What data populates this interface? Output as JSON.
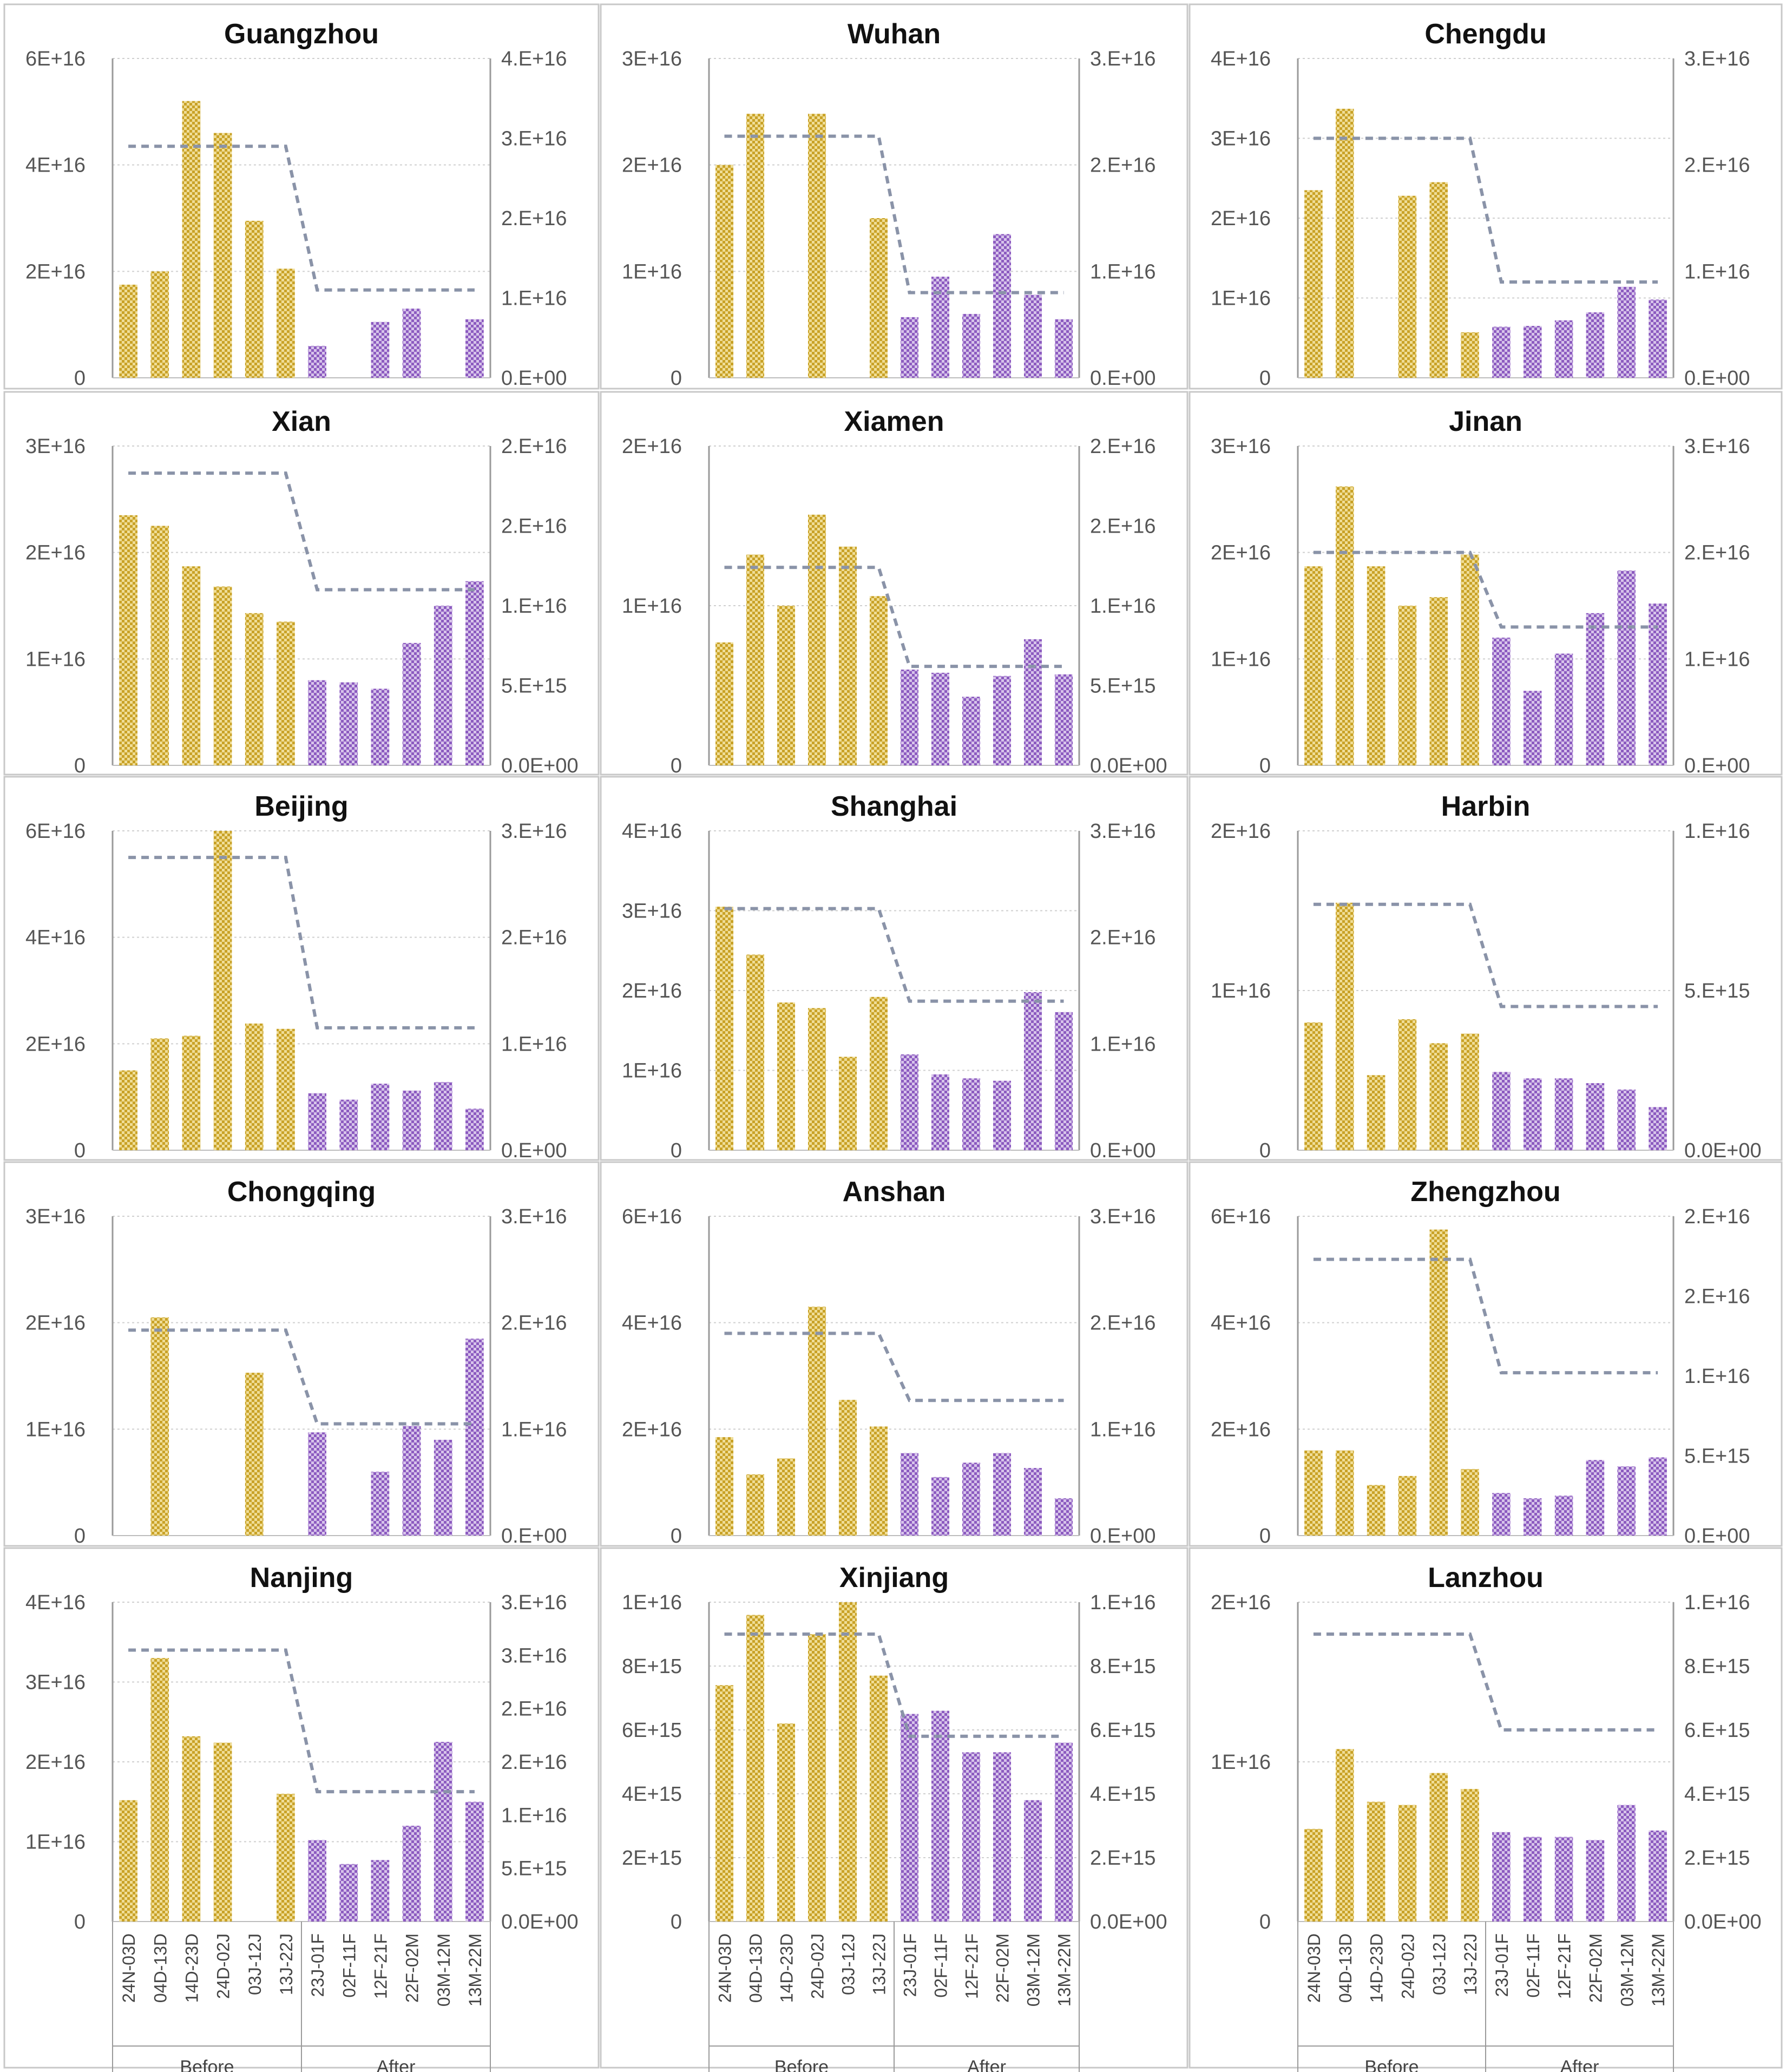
{
  "palette": {
    "before": "#c9a227",
    "before_light": "#efdd97",
    "after": "#8c5bc0",
    "after_light": "#d7c4ea",
    "avg_line": "#8a93a8",
    "axis": "#9a9a9a",
    "grid": "#cfcfcf"
  },
  "x_categories": [
    "24N-03D",
    "04D-13D",
    "14D-23D",
    "24D-02J",
    "03J-12J",
    "13J-22J",
    "23J-01F",
    "02F-11F",
    "12F-21F",
    "22F-02M",
    "03M-12M",
    "13M-22M"
  ],
  "groups": [
    {
      "label": "Before",
      "count": 6
    },
    {
      "label": "After",
      "count": 6
    }
  ],
  "chart_data": [
    {
      "type": "bar",
      "title": "Guangzhou",
      "ylim": [
        0,
        6e+16
      ],
      "yticks": [
        "0",
        "2E+16",
        "4E+16",
        "6E+16"
      ],
      "y2lim": [
        0,
        4e+16
      ],
      "y2ticks": [
        "0.E+00",
        "1.E+16",
        "2.E+16",
        "3.E+16",
        "4.E+16"
      ],
      "values": [
        1.75e+16,
        2e+16,
        5.2e+16,
        4.6e+16,
        2.95e+16,
        2.05e+16,
        6000000000000000.0,
        null,
        1.05e+16,
        1.3e+16,
        null,
        1.1e+16
      ],
      "avg_before": 2.9e+16,
      "avg_after": 1.1e+16
    },
    {
      "type": "bar",
      "title": "Wuhan",
      "ylim": [
        0,
        3e+16
      ],
      "yticks": [
        "0",
        "1E+16",
        "2E+16",
        "3E+16"
      ],
      "y2lim": [
        0,
        3e+16
      ],
      "y2ticks": [
        "0.E+00",
        "1.E+16",
        "2.E+16",
        "3.E+16"
      ],
      "values": [
        2e+16,
        2.48e+16,
        null,
        2.48e+16,
        null,
        1.5e+16,
        5700000000000000.0,
        9500000000000000.0,
        6000000000000000.0,
        1.35e+16,
        7800000000000000.0,
        5500000000000000.0
      ],
      "avg_before": 2.27e+16,
      "avg_after": 8000000000000000.0
    },
    {
      "type": "bar",
      "title": "Chengdu",
      "ylim": [
        0,
        4e+16
      ],
      "yticks": [
        "0",
        "1E+16",
        "2E+16",
        "3E+16",
        "4E+16"
      ],
      "y2lim": [
        0,
        3e+16
      ],
      "y2ticks": [
        "0.E+00",
        "1.E+16",
        "2.E+16",
        "3.E+16"
      ],
      "values": [
        2.35e+16,
        3.37e+16,
        null,
        2.28e+16,
        2.45e+16,
        5700000000000000.0,
        6400000000000000.0,
        6500000000000000.0,
        7200000000000000.0,
        8200000000000000.0,
        1.14e+16,
        9800000000000000.0
      ],
      "avg_before": 2.25e+16,
      "avg_after": 9000000000000000.0
    },
    {
      "type": "bar",
      "title": "Xian",
      "ylim": [
        0,
        3e+16
      ],
      "yticks": [
        "0",
        "1E+16",
        "2E+16",
        "3E+16"
      ],
      "y2lim": [
        0,
        2e+16
      ],
      "y2ticks": [
        "0.0E+00",
        "5.E+15",
        "1.E+16",
        "2.E+16",
        "2.E+16"
      ],
      "values": [
        2.35e+16,
        2.25e+16,
        1.87e+16,
        1.68e+16,
        1.43e+16,
        1.35e+16,
        8000000000000000.0,
        7800000000000000.0,
        7200000000000000.0,
        1.15e+16,
        1.5e+16,
        1.73e+16
      ],
      "avg_before": 1.83e+16,
      "avg_after": 1.1e+16
    },
    {
      "type": "bar",
      "title": "Xiamen",
      "ylim": [
        0,
        2e+16
      ],
      "yticks": [
        "0",
        "1E+16",
        "2E+16"
      ],
      "y2lim": [
        0,
        2e+16
      ],
      "y2ticks": [
        "0.0E+00",
        "5.E+15",
        "1.E+16",
        "2.E+16",
        "2.E+16"
      ],
      "values": [
        7700000000000000.0,
        1.32e+16,
        1e+16,
        1.57e+16,
        1.37e+16,
        1.06e+16,
        6000000000000000.0,
        5800000000000000.0,
        4300000000000000.0,
        5600000000000000.0,
        7900000000000000.0,
        5700000000000000.0
      ],
      "avg_before": 1.24e+16,
      "avg_after": 6200000000000000.0
    },
    {
      "type": "bar",
      "title": "Jinan",
      "ylim": [
        0,
        3e+16
      ],
      "yticks": [
        "0",
        "1E+16",
        "2E+16",
        "3E+16"
      ],
      "y2lim": [
        0,
        3e+16
      ],
      "y2ticks": [
        "0.E+00",
        "1.E+16",
        "2.E+16",
        "3.E+16"
      ],
      "values": [
        1.87e+16,
        2.62e+16,
        1.87e+16,
        1.5e+16,
        1.58e+16,
        1.98e+16,
        1.2e+16,
        7000000000000000.0,
        1.05e+16,
        1.43e+16,
        1.83e+16,
        1.52e+16
      ],
      "avg_before": 2e+16,
      "avg_after": 1.3e+16
    },
    {
      "type": "bar",
      "title": "Beijing",
      "ylim": [
        0,
        6e+16
      ],
      "yticks": [
        "0",
        "2E+16",
        "4E+16",
        "6E+16"
      ],
      "y2lim": [
        0,
        3e+16
      ],
      "y2ticks": [
        "0.E+00",
        "1.E+16",
        "2.E+16",
        "3.E+16"
      ],
      "values": [
        1.5e+16,
        2.1e+16,
        2.15e+16,
        6e+16,
        2.38e+16,
        2.28e+16,
        1.07e+16,
        9500000000000000.0,
        1.25e+16,
        1.12e+16,
        1.28e+16,
        7800000000000000.0
      ],
      "avg_before": 2.75e+16,
      "avg_after": 1.15e+16
    },
    {
      "type": "bar",
      "title": "Shanghai",
      "ylim": [
        0,
        4e+16
      ],
      "yticks": [
        "0",
        "1E+16",
        "2E+16",
        "3E+16",
        "4E+16"
      ],
      "y2lim": [
        0,
        3e+16
      ],
      "y2ticks": [
        "0.E+00",
        "1.E+16",
        "2.E+16",
        "3.E+16"
      ],
      "values": [
        3.05e+16,
        2.45e+16,
        1.85e+16,
        1.78e+16,
        1.17e+16,
        1.92e+16,
        1.2e+16,
        9500000000000000.0,
        9000000000000000.0,
        8700000000000000.0,
        1.98e+16,
        1.73e+16
      ],
      "avg_before": 2.27e+16,
      "avg_after": 1.4e+16
    },
    {
      "type": "bar",
      "title": "Harbin",
      "ylim": [
        0,
        2e+16
      ],
      "yticks": [
        "0",
        "1E+16",
        "2E+16"
      ],
      "y2lim": [
        0,
        1e+16
      ],
      "y2ticks": [
        "0.0E+00",
        "5.E+15",
        "1.E+16"
      ],
      "values": [
        8000000000000000.0,
        1.55e+16,
        4700000000000000.0,
        8200000000000000.0,
        6700000000000000.0,
        7300000000000000.0,
        4900000000000000.0,
        4500000000000000.0,
        4500000000000000.0,
        4200000000000000.0,
        3800000000000000.0,
        2700000000000000.0
      ],
      "avg_before": 7700000000000000.0,
      "avg_after": 4500000000000000.0
    },
    {
      "type": "bar",
      "title": "Chongqing",
      "ylim": [
        0,
        3e+16
      ],
      "yticks": [
        "0",
        "1E+16",
        "2E+16",
        "3E+16"
      ],
      "y2lim": [
        0,
        3e+16
      ],
      "y2ticks": [
        "0.E+00",
        "1.E+16",
        "2.E+16",
        "3.E+16"
      ],
      "values": [
        null,
        2.05e+16,
        null,
        null,
        1.53e+16,
        null,
        9700000000000000.0,
        null,
        6000000000000000.0,
        1.03e+16,
        9000000000000000.0,
        1.85e+16
      ],
      "avg_before": 1.93e+16,
      "avg_after": 1.05e+16
    },
    {
      "type": "bar",
      "title": "Anshan",
      "ylim": [
        0,
        6e+16
      ],
      "yticks": [
        "0",
        "2E+16",
        "4E+16",
        "6E+16"
      ],
      "y2lim": [
        0,
        3e+16
      ],
      "y2ticks": [
        "0.E+00",
        "1.E+16",
        "2.E+16",
        "3.E+16"
      ],
      "values": [
        1.85e+16,
        1.15e+16,
        1.45e+16,
        4.3e+16,
        2.55e+16,
        2.05e+16,
        1.55e+16,
        1.1e+16,
        1.37e+16,
        1.55e+16,
        1.27e+16,
        7000000000000000.0
      ],
      "avg_before": 1.9e+16,
      "avg_after": 1.27e+16
    },
    {
      "type": "bar",
      "title": "Zhengzhou",
      "ylim": [
        0,
        6e+16
      ],
      "yticks": [
        "0",
        "2E+16",
        "4E+16",
        "6E+16"
      ],
      "y2lim": [
        0,
        2e+16
      ],
      "y2ticks": [
        "0.E+00",
        "5.E+15",
        "1.E+16",
        "2.E+16",
        "2.E+16"
      ],
      "values": [
        1.6e+16,
        1.6e+16,
        9500000000000000.0,
        1.12e+16,
        5.75e+16,
        1.25e+16,
        8000000000000000.0,
        7000000000000000.0,
        7500000000000000.0,
        1.42e+16,
        1.3e+16,
        1.47e+16
      ],
      "avg_before": 1.73e+16,
      "avg_after": 1.02e+16
    },
    {
      "type": "bar",
      "title": "Nanjing",
      "ylim": [
        0,
        4e+16
      ],
      "yticks": [
        "0",
        "1E+16",
        "2E+16",
        "3E+16",
        "4E+16"
      ],
      "y2lim": [
        0,
        3e+16
      ],
      "y2ticks": [
        "0.0E+00",
        "5.E+15",
        "1.E+16",
        "2.E+16",
        "2.E+16",
        "3.E+16",
        "3.E+16"
      ],
      "values": [
        1.52e+16,
        3.3e+16,
        2.32e+16,
        2.24e+16,
        null,
        1.6e+16,
        1.02e+16,
        7200000000000000.0,
        7700000000000000.0,
        1.2e+16,
        2.25e+16,
        1.5e+16
      ],
      "avg_before": 2.55e+16,
      "avg_after": 1.22e+16
    },
    {
      "type": "bar",
      "title": "Xinjiang",
      "ylim": [
        0,
        1e+16
      ],
      "yticks": [
        "0",
        "2E+15",
        "4E+15",
        "6E+15",
        "8E+15",
        "1E+16"
      ],
      "y2lim": [
        0,
        1e+16
      ],
      "y2ticks": [
        "0.0E+00",
        "2.E+15",
        "4.E+15",
        "6.E+15",
        "8.E+15",
        "1.E+16"
      ],
      "values": [
        7400000000000000.0,
        9600000000000000.0,
        6200000000000000.0,
        9000000000000000.0,
        1e+16,
        7700000000000000.0,
        6500000000000000.0,
        6600000000000000.0,
        5300000000000000.0,
        5300000000000000.0,
        3800000000000000.0,
        5600000000000000.0
      ],
      "avg_before": 9000000000000000.0,
      "avg_after": 5800000000000000.0
    },
    {
      "type": "bar",
      "title": "Lanzhou",
      "ylim": [
        0,
        2e+16
      ],
      "yticks": [
        "0",
        "1E+16",
        "2E+16"
      ],
      "y2lim": [
        0,
        1e+16
      ],
      "y2ticks": [
        "0.0E+00",
        "2.E+15",
        "4.E+15",
        "6.E+15",
        "8.E+15",
        "1.E+16"
      ],
      "values": [
        5800000000000000.0,
        1.08e+16,
        7500000000000000.0,
        7300000000000000.0,
        9300000000000000.0,
        8300000000000000.0,
        5600000000000000.0,
        5300000000000000.0,
        5300000000000000.0,
        5100000000000000.0,
        7300000000000000.0,
        5700000000000000.0
      ],
      "avg_before": 9000000000000000.0,
      "avg_after": 6000000000000000.0
    }
  ]
}
